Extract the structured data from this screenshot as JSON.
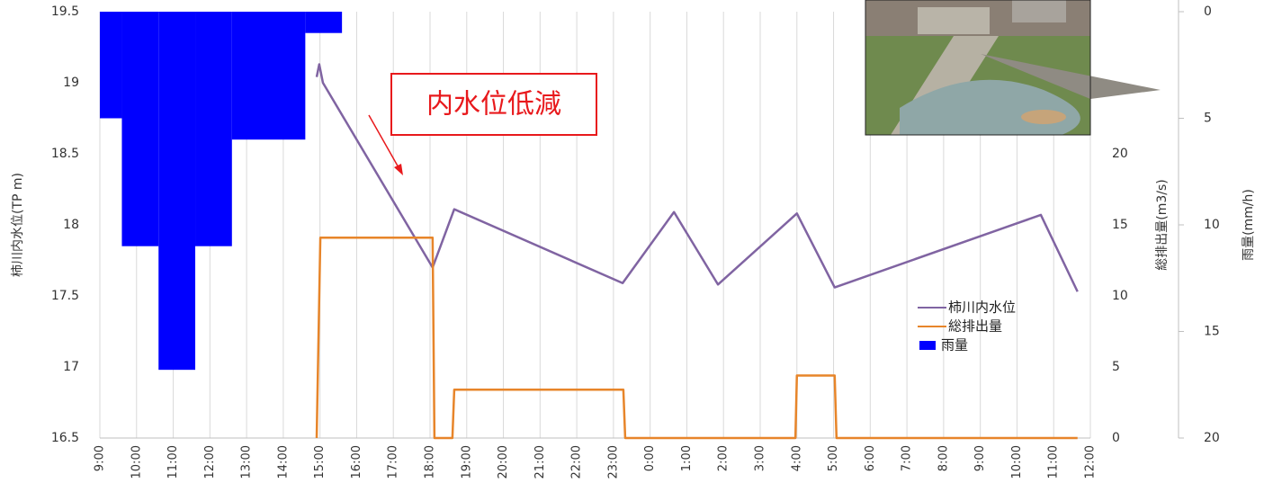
{
  "chart_data": {
    "type": "combo",
    "y_label": "柿川内水位(TP m)",
    "y2_label": "総排出量(m3/s)",
    "y3_label": "雨量(mm/h)",
    "annotation": "内水位低減",
    "grid": "x",
    "legend": "right",
    "xlim": [
      9,
      36
    ],
    "xticks": [
      {
        "value": 9,
        "label": "9:00"
      },
      {
        "value": 10,
        "label": "10:00"
      },
      {
        "value": 11,
        "label": "11:00"
      },
      {
        "value": 12,
        "label": "12:00"
      },
      {
        "value": 13,
        "label": "13:00"
      },
      {
        "value": 14,
        "label": "14:00"
      },
      {
        "value": 15,
        "label": "15:00"
      },
      {
        "value": 16,
        "label": "16:00"
      },
      {
        "value": 17,
        "label": "17:00"
      },
      {
        "value": 18,
        "label": "18:00"
      },
      {
        "value": 19,
        "label": "19:00"
      },
      {
        "value": 20,
        "label": "20:00"
      },
      {
        "value": 21,
        "label": "21:00"
      },
      {
        "value": 22,
        "label": "22:00"
      },
      {
        "value": 23,
        "label": "23:00"
      },
      {
        "value": 24,
        "label": "0:00"
      },
      {
        "value": 25,
        "label": "1:00"
      },
      {
        "value": 26,
        "label": "2:00"
      },
      {
        "value": 27,
        "label": "3:00"
      },
      {
        "value": 28,
        "label": "4:00"
      },
      {
        "value": 29,
        "label": "5:00"
      },
      {
        "value": 30,
        "label": "6:00"
      },
      {
        "value": 31,
        "label": "7:00"
      },
      {
        "value": 32,
        "label": "8:00"
      },
      {
        "value": 33,
        "label": "9:00"
      },
      {
        "value": 34,
        "label": "10:00"
      },
      {
        "value": 35,
        "label": "11:00"
      },
      {
        "value": 36,
        "label": "12:00"
      }
    ],
    "ylim": [
      16.5,
      19.5
    ],
    "yticks": [
      16.5,
      17,
      17.5,
      18,
      18.5,
      19,
      19.5
    ],
    "y2lim": [
      0,
      30
    ],
    "y2ticks": [
      0,
      5,
      10,
      15,
      20
    ],
    "y3lim": [
      0,
      20
    ],
    "y3_inverted": true,
    "y3ticks": [
      0,
      5,
      10,
      15,
      20
    ],
    "series": [
      {
        "name": "柿川内水位",
        "type": "line",
        "axis": "y",
        "color": "#8064a2",
        "x": [
          14.91,
          14.98,
          15.08,
          18.07,
          18.66,
          23.25,
          24.65,
          25.85,
          28.0,
          29.03,
          34.65,
          35.65
        ],
        "values": [
          19.04,
          19.13,
          19.0,
          17.7,
          18.11,
          17.59,
          18.09,
          17.58,
          18.08,
          17.56,
          18.07,
          17.53
        ]
      },
      {
        "name": "総排出量",
        "type": "line",
        "axis": "y2",
        "color": "#e7852a",
        "x": [
          14.91,
          15.01,
          18.07,
          18.12,
          18.61,
          18.66,
          23.27,
          23.32,
          27.96,
          28.0,
          29.03,
          29.08,
          35.65
        ],
        "values": [
          0,
          14.1,
          14.1,
          0,
          0,
          3.4,
          3.4,
          0,
          0,
          4.4,
          4.4,
          0,
          0
        ]
      },
      {
        "name": "雨量",
        "type": "bar",
        "axis": "y3",
        "color": "#0000ff",
        "bins": [
          9,
          9.6,
          10.6,
          11.6,
          12.6,
          14.6,
          15.6
        ],
        "values": [
          5,
          11,
          16.8,
          11,
          6,
          1
        ]
      }
    ]
  }
}
